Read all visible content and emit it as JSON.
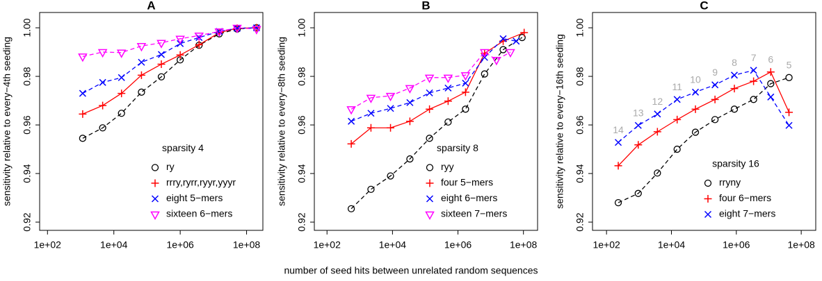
{
  "x_label": "number of seed hits between unrelated random sequences",
  "chart_data": [
    {
      "type": "line",
      "title": "A",
      "y_label": "sensitivity relative to every−4th seeding",
      "log_x": true,
      "xlim": [
        58,
        310000000
      ],
      "ylim": [
        0.9166,
        1.0063
      ],
      "xticks": [
        {
          "value": 100,
          "label": "1e+02"
        },
        {
          "value": 10000,
          "label": "1e+04"
        },
        {
          "value": 1000000,
          "label": "1e+06"
        },
        {
          "value": 100000000,
          "label": "1e+08"
        }
      ],
      "yticks": [
        0.92,
        0.94,
        0.96,
        0.98,
        {
          "value": 1,
          "label": "1.00"
        }
      ],
      "legend_title": "sparsity 4",
      "legend_position": "bottom-right",
      "series": [
        {
          "name": "ry",
          "color": "#000000",
          "marker": "circle",
          "dashed": true,
          "x": [
            1150,
            4600,
            17000,
            68000,
            270000,
            1000000,
            3700000,
            15000000,
            52000000,
            200000000
          ],
          "values": [
            0.9545,
            0.9588,
            0.9648,
            0.9735,
            0.9798,
            0.9868,
            0.9928,
            0.9975,
            0.9995,
            1.0
          ]
        },
        {
          "name": "rrry,ryrr,ryyr,yyyr",
          "color": "#ff0000",
          "marker": "plus",
          "dashed": false,
          "x": [
            1150,
            4600,
            17000,
            68000,
            270000,
            1000000,
            3700000,
            15000000,
            52000000,
            200000000
          ],
          "values": [
            0.9645,
            0.968,
            0.973,
            0.9805,
            0.985,
            0.9888,
            0.993,
            0.998,
            0.9998,
            1.0
          ]
        },
        {
          "name": "eight 5−mers",
          "color": "#0000ff",
          "marker": "cross",
          "dashed": true,
          "x": [
            1150,
            4600,
            17000,
            68000,
            270000,
            1000000,
            3700000,
            15000000,
            52000000,
            200000000
          ],
          "values": [
            0.973,
            0.9775,
            0.9795,
            0.9858,
            0.989,
            0.9935,
            0.996,
            0.9985,
            0.9998,
            1.0
          ]
        },
        {
          "name": "sixteen 6−mers",
          "color": "#ff00ff",
          "marker": "triangle-down",
          "dashed": true,
          "x": [
            1150,
            4600,
            17000,
            68000,
            270000,
            1000000,
            3700000,
            15000000,
            52000000,
            200000000
          ],
          "values": [
            0.9882,
            0.99,
            0.9898,
            0.9925,
            0.9938,
            0.9955,
            0.9968,
            0.9985,
            1.0,
            0.9995
          ]
        }
      ]
    },
    {
      "type": "line",
      "title": "B",
      "y_label": "sensitivity relative to every−8th seeding",
      "log_x": true,
      "xlim": [
        41,
        270000000
      ],
      "ylim": [
        0.9166,
        1.0063
      ],
      "xticks": [
        {
          "value": 100,
          "label": "1e+02"
        },
        {
          "value": 10000,
          "label": "1e+04"
        },
        {
          "value": 1000000,
          "label": "1e+06"
        },
        {
          "value": 100000000,
          "label": "1e+08"
        }
      ],
      "yticks": [
        0.92,
        0.94,
        0.96,
        0.98,
        {
          "value": 1,
          "label": "1.00"
        }
      ],
      "legend_title": "sparsity 8",
      "legend_position": "bottom-right",
      "series": [
        {
          "name": "ryy",
          "color": "#000000",
          "marker": "circle",
          "dashed": true,
          "x": [
            550,
            2200,
            8700,
            34000,
            135000,
            500000,
            1700000,
            6500000,
            24000000,
            91000000
          ],
          "values": [
            0.9255,
            0.9335,
            0.939,
            0.946,
            0.9545,
            0.9612,
            0.9665,
            0.981,
            0.991,
            0.996
          ]
        },
        {
          "name": "four 5−mers",
          "color": "#ff0000",
          "marker": "plus",
          "dashed": false,
          "x": [
            550,
            2200,
            8700,
            34000,
            135000,
            500000,
            1700000,
            6500000,
            24000000,
            105000000
          ],
          "values": [
            0.9522,
            0.9588,
            0.9588,
            0.9615,
            0.9665,
            0.9698,
            0.9735,
            0.9895,
            0.9945,
            0.998
          ]
        },
        {
          "name": "eight 6−mers",
          "color": "#0000ff",
          "marker": "cross",
          "dashed": true,
          "x": [
            550,
            2200,
            8700,
            34000,
            135000,
            500000,
            1700000,
            6500000,
            24000000,
            60000000
          ],
          "values": [
            0.9615,
            0.9648,
            0.9668,
            0.9692,
            0.9732,
            0.9752,
            0.9772,
            0.9878,
            0.9955,
            0.9945
          ]
        },
        {
          "name": "sixteen 7−mers",
          "color": "#ff00ff",
          "marker": "triangle-down",
          "dashed": true,
          "x": [
            550,
            2200,
            8700,
            34000,
            135000,
            500000,
            1700000,
            6500000,
            15000000,
            40000000
          ],
          "values": [
            0.9665,
            0.9712,
            0.972,
            0.9752,
            0.9795,
            0.9795,
            0.9805,
            0.99,
            0.9868,
            0.99
          ]
        }
      ]
    },
    {
      "type": "line",
      "title": "C",
      "y_label": "sensitivity relative to every−16th seeding",
      "log_x": true,
      "xlim": [
        37,
        280000000
      ],
      "ylim": [
        0.9166,
        1.0063
      ],
      "xticks": [
        {
          "value": 100,
          "label": "1e+02"
        },
        {
          "value": 10000,
          "label": "1e+04"
        },
        {
          "value": 1000000,
          "label": "1e+06"
        },
        {
          "value": 100000000,
          "label": "1e+08"
        }
      ],
      "yticks": [
        0.92,
        0.94,
        0.96,
        0.98,
        {
          "value": 1,
          "label": "1.00"
        }
      ],
      "legend_title": "sparsity 16",
      "legend_position": "bottom-right",
      "point_labels": [
        14,
        13,
        12,
        11,
        10,
        9,
        8,
        7,
        6,
        5
      ],
      "point_label_color": "#aaaaaa",
      "series": [
        {
          "name": "rryny",
          "color": "#000000",
          "marker": "circle",
          "dashed": true,
          "x": [
            230,
            950,
            3700,
            15000,
            55000,
            220000,
            870000,
            3400000,
            11500000,
            42000000
          ],
          "values": [
            0.928,
            0.9318,
            0.9402,
            0.95,
            0.957,
            0.9622,
            0.9665,
            0.9705,
            0.977,
            0.9795
          ]
        },
        {
          "name": "four 6−mers",
          "color": "#ff0000",
          "marker": "plus",
          "dashed": false,
          "x": [
            230,
            950,
            3700,
            15000,
            55000,
            220000,
            870000,
            3400000,
            11500000,
            42000000
          ],
          "values": [
            0.9432,
            0.9518,
            0.9572,
            0.9622,
            0.9665,
            0.9705,
            0.975,
            0.978,
            0.9818,
            0.9652
          ]
        },
        {
          "name": "eight 7−mers",
          "color": "#0000ff",
          "marker": "cross",
          "dashed": true,
          "x": [
            230,
            950,
            3700,
            15000,
            55000,
            220000,
            870000,
            3400000,
            11500000,
            42000000
          ],
          "values": [
            0.9528,
            0.9598,
            0.9645,
            0.9705,
            0.9735,
            0.9765,
            0.9805,
            0.9825,
            0.9715,
            0.9598
          ]
        }
      ]
    }
  ]
}
